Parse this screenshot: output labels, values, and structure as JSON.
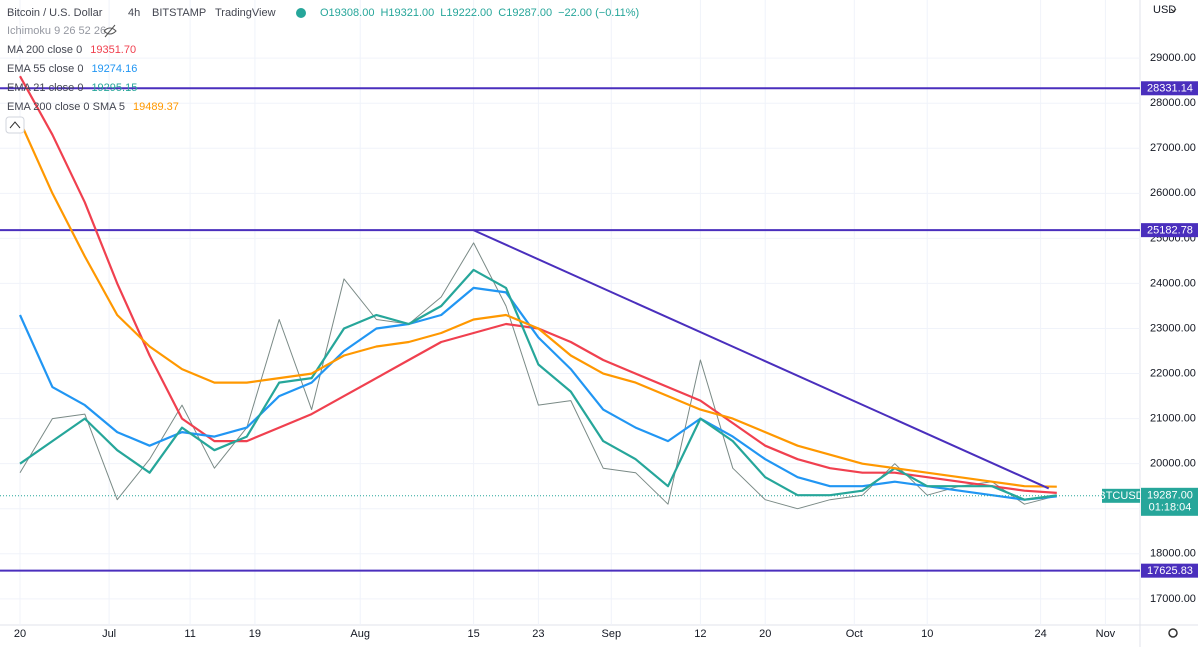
{
  "chart_data": {
    "type": "line",
    "title": "Bitcoin / U.S. Dollar",
    "interval": "4h",
    "exchange": "BITSTAMP",
    "source": "TradingView",
    "ohlc": [
      "O19308.00",
      "H19321.00",
      "L19222.00",
      "C19287.00",
      "−22.00 (−0.11%)"
    ],
    "ichimoku": "Ichimoku 9 26 52 26",
    "currency": "USD",
    "x": [
      0,
      4,
      8,
      12,
      16,
      20,
      24,
      28,
      32,
      36,
      40,
      44,
      48,
      52,
      56,
      60,
      64,
      68,
      72,
      76,
      80,
      84,
      88,
      92,
      96,
      100,
      104,
      108,
      112,
      116,
      120,
      124,
      128
    ],
    "series": [
      {
        "name": "BTCUSD",
        "color": "#7a8a86",
        "values": [
          19800,
          21000,
          21100,
          19200,
          20100,
          21300,
          19900,
          20800,
          23200,
          21200,
          24100,
          23200,
          23100,
          23700,
          24900,
          23500,
          21300,
          21400,
          19900,
          19800,
          19100,
          22300,
          19900,
          19200,
          19000,
          19200,
          19300,
          20000,
          19300,
          19500,
          19600,
          19100,
          19287
        ]
      },
      {
        "name": "MA 200 close 0",
        "legend_value": "19351.70",
        "color": "#f0404f",
        "values": [
          28600,
          27300,
          25800,
          24000,
          22400,
          21000,
          20500,
          20500,
          20800,
          21100,
          21500,
          21900,
          22300,
          22700,
          22900,
          23100,
          23000,
          22700,
          22300,
          22000,
          21700,
          21400,
          20900,
          20400,
          20100,
          19900,
          19800,
          19800,
          19700,
          19600,
          19500,
          19400,
          19351.7
        ]
      },
      {
        "name": "EMA 55 close 0",
        "legend_value": "19274.16",
        "color": "#2196f3",
        "values": [
          23300,
          21700,
          21300,
          20700,
          20400,
          20700,
          20600,
          20800,
          21500,
          21800,
          22500,
          23000,
          23100,
          23300,
          23900,
          23800,
          22800,
          22100,
          21200,
          20800,
          20500,
          21000,
          20600,
          20100,
          19700,
          19500,
          19500,
          19600,
          19500,
          19400,
          19300,
          19200,
          19274.16
        ]
      },
      {
        "name": "EMA 21 close 0",
        "legend_value": "19295.15",
        "color": "#26a69a",
        "values": [
          20000,
          20500,
          21000,
          20300,
          19800,
          20800,
          20300,
          20600,
          21800,
          21900,
          23000,
          23300,
          23100,
          23500,
          24300,
          23900,
          22200,
          21600,
          20500,
          20100,
          19500,
          21000,
          20500,
          19700,
          19300,
          19300,
          19400,
          19900,
          19500,
          19500,
          19500,
          19200,
          19295.15
        ]
      },
      {
        "name": "EMA 200 close 0 SMA 5",
        "legend_value": "19489.37",
        "color": "#ff9800",
        "values": [
          27600,
          26000,
          24600,
          23300,
          22600,
          22100,
          21800,
          21800,
          21900,
          22000,
          22400,
          22600,
          22700,
          22900,
          23200,
          23300,
          23000,
          22400,
          22000,
          21800,
          21500,
          21200,
          21000,
          20700,
          20400,
          20200,
          20000,
          19900,
          19800,
          19700,
          19600,
          19500,
          19489.37
        ]
      }
    ],
    "hlines": [
      {
        "value": 28331.14,
        "label": "28331.14"
      },
      {
        "value": 25182.78,
        "label": "25182.78"
      },
      {
        "value": 17625.83,
        "label": "17625.83"
      }
    ],
    "hline_color": "#4a2fbd",
    "trendline": {
      "x": [
        56,
        127
      ],
      "y": [
        25180,
        19450
      ]
    },
    "last_price": {
      "value": 19287,
      "label": "19287.00"
    },
    "countdown": "01:18:04",
    "xlim": [
      -2.47,
      138.27
    ],
    "ylim": [
      16420,
      30290
    ],
    "xticks": [
      {
        "value": 0,
        "label": "20"
      },
      {
        "value": 11,
        "label": "Jul"
      },
      {
        "value": 21,
        "label": "11"
      },
      {
        "value": 29,
        "label": "19"
      },
      {
        "value": 42,
        "label": "Aug"
      },
      {
        "value": 56,
        "label": "15"
      },
      {
        "value": 64,
        "label": "23"
      },
      {
        "value": 73,
        "label": "Sep"
      },
      {
        "value": 84,
        "label": "12"
      },
      {
        "value": 92,
        "label": "20"
      },
      {
        "value": 103,
        "label": "Oct"
      },
      {
        "value": 112,
        "label": "10"
      },
      {
        "value": 126,
        "label": "24"
      },
      {
        "value": 134,
        "label": "Nov"
      }
    ],
    "yticks": [
      {
        "value": 17000,
        "label": "17000.00"
      },
      {
        "value": 18000,
        "label": "18000.00"
      },
      {
        "value": 19000,
        "label": "19000.00"
      },
      {
        "value": 20000,
        "label": "20000.00"
      },
      {
        "value": 21000,
        "label": "21000.00"
      },
      {
        "value": 22000,
        "label": "22000.00"
      },
      {
        "value": 23000,
        "label": "23000.00"
      },
      {
        "value": 24000,
        "label": "24000.00"
      },
      {
        "value": 25000,
        "label": "25000.00"
      },
      {
        "value": 26000,
        "label": "26000.00"
      },
      {
        "value": 27000,
        "label": "27000.00"
      },
      {
        "value": 28000,
        "label": "28000.00"
      },
      {
        "value": 29000,
        "label": "29000.00"
      }
    ],
    "grid": true
  }
}
